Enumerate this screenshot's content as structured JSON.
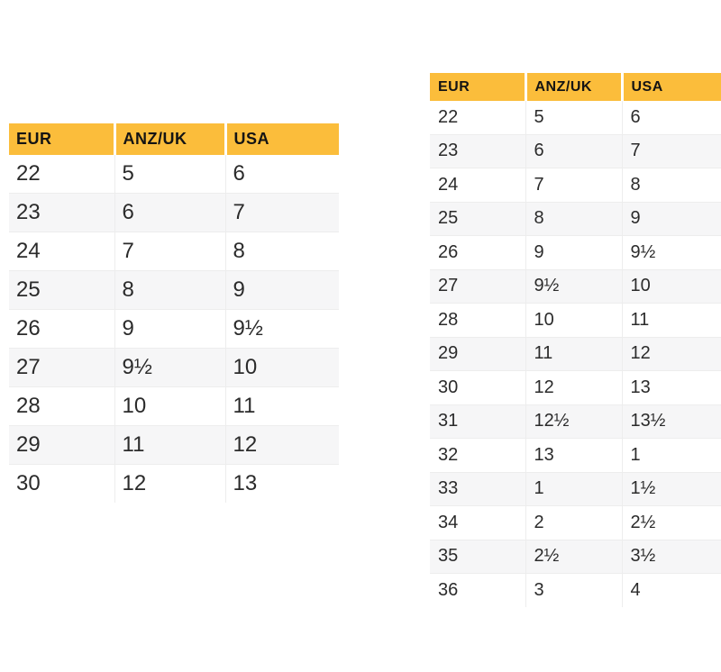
{
  "colors": {
    "header_bg": "#FBBD3B",
    "header_text": "#141414",
    "cell_text": "#2B2B2B",
    "row_bg": "#FFFFFF",
    "row_alt_bg": "#F6F6F7",
    "divider": "#EDEDED",
    "header_column_gap": "#FFFFFF",
    "page_bg": "#FFFFFF"
  },
  "chart_data": [
    {
      "type": "table",
      "columns": [
        "EUR",
        "ANZ/UK",
        "USA"
      ],
      "rows": [
        [
          "22",
          "5",
          "6"
        ],
        [
          "23",
          "6",
          "7"
        ],
        [
          "24",
          "7",
          "8"
        ],
        [
          "25",
          "8",
          "9"
        ],
        [
          "26",
          "9",
          "9½"
        ],
        [
          "27",
          "9½",
          "10"
        ],
        [
          "28",
          "10",
          "11"
        ],
        [
          "29",
          "11",
          "12"
        ],
        [
          "30",
          "12",
          "13"
        ]
      ]
    },
    {
      "type": "table",
      "columns": [
        "EUR",
        "ANZ/UK",
        "USA"
      ],
      "rows": [
        [
          "22",
          "5",
          "6"
        ],
        [
          "23",
          "6",
          "7"
        ],
        [
          "24",
          "7",
          "8"
        ],
        [
          "25",
          "8",
          "9"
        ],
        [
          "26",
          "9",
          "9½"
        ],
        [
          "27",
          "9½",
          "10"
        ],
        [
          "28",
          "10",
          "11"
        ],
        [
          "29",
          "11",
          "12"
        ],
        [
          "30",
          "12",
          "13"
        ],
        [
          "31",
          "12½",
          "13½"
        ],
        [
          "32",
          "13",
          "1"
        ],
        [
          "33",
          "1",
          "1½"
        ],
        [
          "34",
          "2",
          "2½"
        ],
        [
          "35",
          "2½",
          "3½"
        ],
        [
          "36",
          "3",
          "4"
        ]
      ]
    }
  ]
}
